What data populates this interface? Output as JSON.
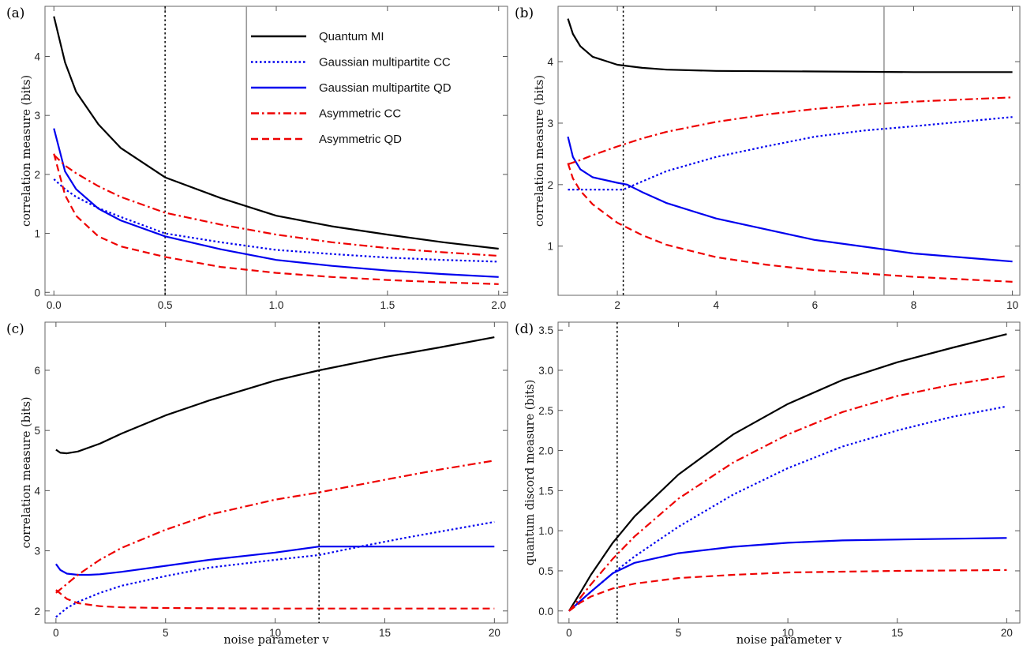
{
  "legend": [
    {
      "label": "Quantum MI",
      "color": "#000000",
      "dash": "solid"
    },
    {
      "label": "Gaussian multipartite CC",
      "color": "#0000ee",
      "dash": "dotted"
    },
    {
      "label": "Gaussian multipartite QD",
      "color": "#0000ee",
      "dash": "solid"
    },
    {
      "label": "Asymmetric CC",
      "color": "#ee0000",
      "dash": "dashdot"
    },
    {
      "label": "Asymmetric QD",
      "color": "#ee0000",
      "dash": "dashed"
    }
  ],
  "chart_data": [
    {
      "panel": "(a)",
      "type": "line",
      "xlabel": "",
      "ylabel": "correlation measure (bits)",
      "xlim": [
        -0.04,
        2.04
      ],
      "ylim": [
        -0.05,
        4.85
      ],
      "xticks": [
        "0.0",
        "0.5",
        "1.0",
        "1.5",
        "2.0"
      ],
      "yticks": [
        "0",
        "1",
        "2",
        "3",
        "4"
      ],
      "vlines": [
        {
          "x": 0.5,
          "style": "dotted",
          "color": "#000000"
        },
        {
          "x": 0.866,
          "style": "solid",
          "color": "#999999"
        }
      ],
      "legend_position": "top-right",
      "grid": false,
      "series": [
        {
          "name": "Quantum MI",
          "color": "#000000",
          "dash": "solid",
          "x": [
            0.0,
            0.05,
            0.1,
            0.2,
            0.3,
            0.5,
            0.75,
            1.0,
            1.25,
            1.5,
            1.75,
            2.0
          ],
          "y": [
            4.68,
            3.9,
            3.4,
            2.85,
            2.45,
            1.95,
            1.6,
            1.3,
            1.12,
            0.98,
            0.85,
            0.74
          ]
        },
        {
          "name": "Gaussian multipartite CC",
          "color": "#0000ee",
          "dash": "dotted",
          "x": [
            0.0,
            0.05,
            0.1,
            0.2,
            0.3,
            0.5,
            0.75,
            1.0,
            1.25,
            1.5,
            1.75,
            2.0
          ],
          "y": [
            1.92,
            1.75,
            1.62,
            1.43,
            1.28,
            1.0,
            0.85,
            0.72,
            0.65,
            0.59,
            0.55,
            0.52
          ]
        },
        {
          "name": "Gaussian multipartite QD",
          "color": "#0000ee",
          "dash": "solid",
          "x": [
            0.0,
            0.05,
            0.1,
            0.2,
            0.3,
            0.5,
            0.75,
            1.0,
            1.25,
            1.5,
            1.75,
            2.0
          ],
          "y": [
            2.78,
            2.05,
            1.75,
            1.42,
            1.22,
            0.95,
            0.73,
            0.55,
            0.45,
            0.37,
            0.31,
            0.26
          ]
        },
        {
          "name": "Asymmetric CC",
          "color": "#ee0000",
          "dash": "dashdot",
          "x": [
            0.0,
            0.05,
            0.1,
            0.2,
            0.3,
            0.5,
            0.75,
            1.0,
            1.25,
            1.5,
            1.75,
            2.0
          ],
          "y": [
            2.33,
            2.15,
            2.02,
            1.8,
            1.62,
            1.35,
            1.15,
            0.98,
            0.85,
            0.75,
            0.68,
            0.62
          ]
        },
        {
          "name": "Asymmetric QD",
          "color": "#ee0000",
          "dash": "dashed",
          "x": [
            0.0,
            0.05,
            0.1,
            0.2,
            0.3,
            0.5,
            0.75,
            1.0,
            1.25,
            1.5,
            1.75,
            2.0
          ],
          "y": [
            2.35,
            1.65,
            1.3,
            0.95,
            0.78,
            0.6,
            0.43,
            0.33,
            0.26,
            0.21,
            0.17,
            0.14
          ]
        }
      ]
    },
    {
      "panel": "(b)",
      "type": "line",
      "xlabel": "",
      "ylabel": "correlation measure (bits)",
      "xlim": [
        0.8,
        10.15
      ],
      "ylim": [
        0.2,
        4.9
      ],
      "xticks": [
        "2",
        "4",
        "6",
        "8",
        "10"
      ],
      "yticks": [
        "1",
        "2",
        "3",
        "4"
      ],
      "vlines": [
        {
          "x": 2.12,
          "style": "dotted",
          "color": "#000000"
        },
        {
          "x": 7.4,
          "style": "solid",
          "color": "#999999"
        }
      ],
      "grid": false,
      "series": [
        {
          "name": "Quantum MI",
          "color": "#000000",
          "dash": "solid",
          "x": [
            1.0,
            1.1,
            1.25,
            1.5,
            2.0,
            2.5,
            3,
            4,
            6,
            8,
            10
          ],
          "y": [
            4.7,
            4.45,
            4.25,
            4.08,
            3.95,
            3.9,
            3.87,
            3.85,
            3.84,
            3.83,
            3.83
          ]
        },
        {
          "name": "Gaussian multipartite CC",
          "color": "#0000ee",
          "dash": "dotted",
          "x": [
            1.0,
            1.5,
            2.12,
            2.5,
            3,
            4,
            5,
            6,
            7,
            8,
            10
          ],
          "y": [
            1.92,
            1.92,
            1.92,
            2.05,
            2.22,
            2.45,
            2.62,
            2.78,
            2.88,
            2.95,
            3.1
          ]
        },
        {
          "name": "Gaussian multipartite QD",
          "color": "#0000ee",
          "dash": "solid",
          "x": [
            1.0,
            1.1,
            1.25,
            1.5,
            2.0,
            2.2,
            2.5,
            3,
            4,
            6,
            8,
            10
          ],
          "y": [
            2.78,
            2.45,
            2.25,
            2.12,
            2.03,
            2.0,
            1.88,
            1.7,
            1.45,
            1.1,
            0.88,
            0.75
          ]
        },
        {
          "name": "Asymmetric CC",
          "color": "#ee0000",
          "dash": "dashdot",
          "x": [
            1.0,
            1.25,
            1.5,
            2.0,
            2.5,
            3,
            4,
            5,
            6,
            7,
            8,
            10
          ],
          "y": [
            2.33,
            2.4,
            2.48,
            2.62,
            2.75,
            2.86,
            3.02,
            3.14,
            3.23,
            3.3,
            3.35,
            3.42
          ]
        },
        {
          "name": "Asymmetric QD",
          "color": "#ee0000",
          "dash": "dashed",
          "x": [
            1.0,
            1.1,
            1.25,
            1.5,
            2.0,
            2.5,
            3,
            4,
            5,
            6,
            8,
            10
          ],
          "y": [
            2.35,
            2.1,
            1.9,
            1.68,
            1.38,
            1.18,
            1.02,
            0.82,
            0.7,
            0.61,
            0.5,
            0.42
          ]
        }
      ]
    },
    {
      "panel": "(c)",
      "type": "line",
      "xlabel": "noise parameter v",
      "ylabel": "correlation measure (bits)",
      "xlim": [
        -0.5,
        20.6
      ],
      "ylim": [
        1.8,
        6.8
      ],
      "xticks": [
        "0",
        "5",
        "10",
        "15",
        "20"
      ],
      "yticks": [
        "2",
        "3",
        "4",
        "5",
        "6"
      ],
      "vlines": [
        {
          "x": 12,
          "style": "dotted",
          "color": "#000000"
        }
      ],
      "grid": false,
      "series": [
        {
          "name": "Quantum MI",
          "color": "#000000",
          "dash": "solid",
          "x": [
            0,
            0.2,
            0.5,
            1,
            2,
            3,
            5,
            7,
            10,
            12,
            15,
            17.5,
            20
          ],
          "y": [
            4.68,
            4.63,
            4.62,
            4.65,
            4.78,
            4.95,
            5.25,
            5.5,
            5.83,
            6.0,
            6.22,
            6.38,
            6.55
          ]
        },
        {
          "name": "Gaussian multipartite CC",
          "color": "#0000ee",
          "dash": "dotted",
          "x": [
            0,
            0.5,
            1,
            2,
            3,
            5,
            7,
            10,
            12,
            14,
            16,
            18,
            20
          ],
          "y": [
            1.9,
            2.05,
            2.15,
            2.3,
            2.42,
            2.58,
            2.72,
            2.85,
            2.93,
            3.08,
            3.22,
            3.35,
            3.48
          ]
        },
        {
          "name": "Gaussian multipartite QD",
          "color": "#0000ee",
          "dash": "solid",
          "x": [
            0,
            0.2,
            0.5,
            1,
            1.5,
            2,
            3,
            5,
            7,
            10,
            12,
            15,
            20
          ],
          "y": [
            2.78,
            2.68,
            2.62,
            2.6,
            2.6,
            2.61,
            2.65,
            2.75,
            2.85,
            2.97,
            3.07,
            3.07,
            3.07
          ]
        },
        {
          "name": "Asymmetric CC",
          "color": "#ee0000",
          "dash": "dashdot",
          "x": [
            0,
            0.5,
            1,
            2,
            3,
            5,
            7,
            10,
            12,
            15,
            17.5,
            20
          ],
          "y": [
            2.3,
            2.45,
            2.6,
            2.85,
            3.05,
            3.35,
            3.6,
            3.85,
            3.97,
            4.18,
            4.35,
            4.5
          ]
        },
        {
          "name": "Asymmetric QD",
          "color": "#ee0000",
          "dash": "dashed",
          "x": [
            0,
            0.5,
            1,
            2,
            3,
            5,
            10,
            15,
            20
          ],
          "y": [
            2.35,
            2.2,
            2.13,
            2.08,
            2.06,
            2.05,
            2.04,
            2.04,
            2.04
          ]
        }
      ]
    },
    {
      "panel": "(d)",
      "type": "line",
      "xlabel": "noise parameter v",
      "ylabel": "quantum discord measure (bits)",
      "xlim": [
        -0.5,
        20.6
      ],
      "ylim": [
        -0.15,
        3.6
      ],
      "xticks": [
        "0",
        "5",
        "10",
        "15",
        "20"
      ],
      "yticks": [
        "0.0",
        "0.5",
        "1.0",
        "1.5",
        "2.0",
        "2.5",
        "3.0",
        "3.5"
      ],
      "vlines": [
        {
          "x": 2.2,
          "style": "dotted",
          "color": "#000000"
        }
      ],
      "grid": false,
      "series": [
        {
          "name": "Quantum MI",
          "color": "#000000",
          "dash": "solid",
          "x": [
            0,
            0.5,
            1,
            2,
            3,
            5,
            7.5,
            10,
            12.5,
            15,
            17.5,
            20
          ],
          "y": [
            0.0,
            0.22,
            0.45,
            0.85,
            1.18,
            1.7,
            2.2,
            2.58,
            2.88,
            3.1,
            3.28,
            3.45
          ]
        },
        {
          "name": "Gaussian multipartite CC",
          "color": "#0000ee",
          "dash": "dotted",
          "x": [
            0,
            0.5,
            1,
            2,
            3,
            5,
            7.5,
            10,
            12.5,
            15,
            17.5,
            20
          ],
          "y": [
            0.0,
            0.12,
            0.24,
            0.47,
            0.68,
            1.05,
            1.45,
            1.78,
            2.05,
            2.25,
            2.42,
            2.55
          ]
        },
        {
          "name": "Gaussian multipartite QD",
          "color": "#0000ee",
          "dash": "solid",
          "x": [
            0,
            0.5,
            1,
            2,
            3,
            5,
            7.5,
            10,
            12.5,
            15,
            17.5,
            20
          ],
          "y": [
            0.0,
            0.12,
            0.24,
            0.47,
            0.6,
            0.72,
            0.8,
            0.85,
            0.88,
            0.89,
            0.9,
            0.91
          ]
        },
        {
          "name": "Asymmetric CC",
          "color": "#ee0000",
          "dash": "dashdot",
          "x": [
            0,
            0.5,
            1,
            2,
            3,
            5,
            7.5,
            10,
            12.5,
            15,
            17.5,
            20
          ],
          "y": [
            0.0,
            0.16,
            0.33,
            0.65,
            0.93,
            1.4,
            1.85,
            2.2,
            2.48,
            2.68,
            2.82,
            2.93
          ]
        },
        {
          "name": "Asymmetric QD",
          "color": "#ee0000",
          "dash": "dashed",
          "x": [
            0,
            0.5,
            1,
            2,
            3,
            5,
            7.5,
            10,
            12.5,
            15,
            17.5,
            20
          ],
          "y": [
            0.0,
            0.1,
            0.18,
            0.28,
            0.34,
            0.41,
            0.45,
            0.48,
            0.49,
            0.5,
            0.505,
            0.51
          ]
        }
      ]
    }
  ]
}
